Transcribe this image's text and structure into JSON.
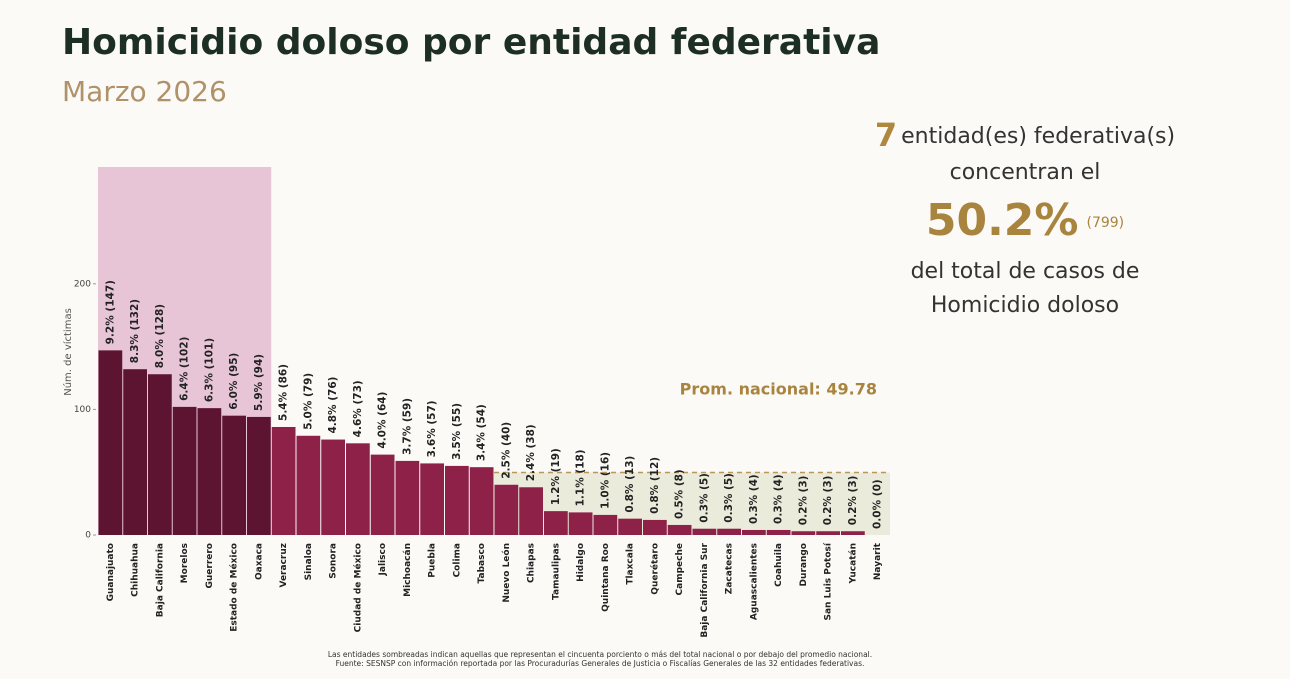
{
  "chart_data": {
    "type": "bar",
    "title": "Homicidio doloso por entidad federativa",
    "subtitle": "Marzo 2026",
    "y_label": "Núm. de víctimas",
    "categories": [
      "Guanajuato",
      "Chihuahua",
      "Baja California",
      "Morelos",
      "Guerrero",
      "Estado de México",
      "Oaxaca",
      "Veracruz",
      "Sinaloa",
      "Sonora",
      "Ciudad de México",
      "Jalisco",
      "Michoacán",
      "Puebla",
      "Colima",
      "Tabasco",
      "Nuevo León",
      "Chiapas",
      "Tamaulipas",
      "Hidalgo",
      "Quintana Roo",
      "Tlaxcala",
      "Querétaro",
      "Campeche",
      "Baja California Sur",
      "Zacatecas",
      "Aguascalientes",
      "Coahuila",
      "Durango",
      "San Luis Potosí",
      "Yucatán",
      "Nayarit"
    ],
    "values": [
      147,
      132,
      128,
      102,
      101,
      95,
      94,
      86,
      79,
      76,
      73,
      64,
      59,
      57,
      55,
      54,
      40,
      38,
      19,
      18,
      16,
      13,
      12,
      8,
      5,
      5,
      4,
      4,
      3,
      3,
      3,
      0
    ],
    "value_labels": [
      "9.2% (147)",
      "8.3% (132)",
      "8.0% (128)",
      "6.4% (102)",
      "6.3% (101)",
      "6.0% (95)",
      "5.9% (94)",
      "5.4% (86)",
      "5.0% (79)",
      "4.8% (76)",
      "4.6% (73)",
      "4.0% (64)",
      "3.7% (59)",
      "3.6% (57)",
      "3.5% (55)",
      "3.4% (54)",
      "2.5% (40)",
      "2.4% (38)",
      "1.2% (19)",
      "1.1% (18)",
      "1.0% (16)",
      "0.8% (13)",
      "0.8% (12)",
      "0.5% (8)",
      "0.3% (5)",
      "0.3% (5)",
      "0.3% (4)",
      "0.3% (4)",
      "0.2% (3)",
      "0.2% (3)",
      "0.2% (3)",
      "0.0% (0)"
    ],
    "colors": {
      "top": "#5c1431",
      "rest": "#8e2148",
      "top_band": "#e7c5d6",
      "low_band": "#ebebdc",
      "average": "#b9975b"
    },
    "ylim": [
      0,
      293
    ],
    "yticks": [
      0,
      100,
      200
    ],
    "average": 49.78,
    "average_label": "Prom. nacional: 49.78",
    "callout": {
      "count": 7,
      "count_text": "entidad(es) federativa(s)",
      "line2": "concentran el",
      "share": "50.2%",
      "total": "(799)",
      "line4": "del total de casos de",
      "line5": "Homicidio doloso"
    },
    "notes": [
      "Las entidades sombreadas indican aquellas que representan el cincuenta porciento o más del total nacional o por debajo del promedio nacional.",
      "Fuente: SESNSP con información reportada por las Procuradurías Generales de Justicia o Fiscalías Generales de las 32 entidades federativas."
    ]
  }
}
